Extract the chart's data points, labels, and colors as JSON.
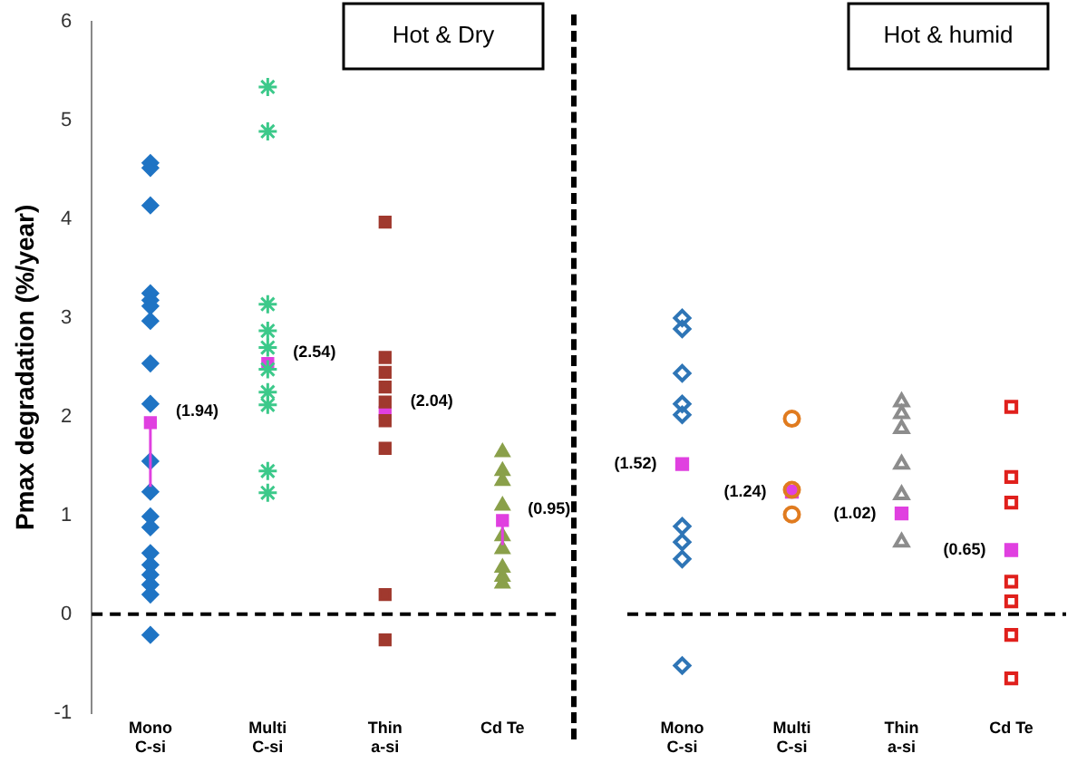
{
  "chart_data": [
    {
      "type": "scatter",
      "title": "Hot & Dry",
      "ylabel": "Pmax degradation (%/year)",
      "categories": [
        "Mono C-si",
        "Multi C-si",
        "Thin a-si",
        "Cd Te"
      ],
      "ylim": [
        -1,
        6
      ],
      "yticks": [
        -1,
        0,
        1,
        2,
        3,
        4,
        5,
        6
      ],
      "grid": false,
      "legend": false,
      "ref_lines": [
        {
          "axis": "y",
          "value": 0,
          "line_style": "dashed",
          "color": "#000000"
        }
      ],
      "series": [
        {
          "color": "#1f74c4",
          "marker": "diamond",
          "x": [
            "Mono C-si",
            "Mono C-si",
            "Mono C-si",
            "Mono C-si",
            "Mono C-si",
            "Mono C-si",
            "Mono C-si",
            "Mono C-si",
            "Mono C-si",
            "Mono C-si",
            "Mono C-si",
            "Mono C-si",
            "Mono C-si",
            "Mono C-si",
            "Mono C-si",
            "Mono C-si",
            "Mono C-si",
            "Mono C-si",
            "Mono C-si"
          ],
          "values": [
            4.57,
            4.52,
            4.14,
            3.25,
            3.18,
            3.12,
            2.97,
            2.54,
            2.13,
            1.55,
            1.24,
            0.99,
            0.88,
            0.62,
            0.5,
            0.4,
            0.3,
            0.2,
            -0.21
          ]
        },
        {
          "color": "#3cc98a",
          "marker": "cross",
          "x": [
            "Multi C-si",
            "Multi C-si",
            "Multi C-si",
            "Multi C-si",
            "Multi C-si",
            "Multi C-si",
            "Multi C-si",
            "Multi C-si",
            "Multi C-si",
            "Multi C-si"
          ],
          "values": [
            5.34,
            4.89,
            3.14,
            2.87,
            2.7,
            2.48,
            2.25,
            2.12,
            1.45,
            1.23
          ]
        },
        {
          "color": "#a0392e",
          "marker": "square",
          "x": [
            "Thin a-si",
            "Thin a-si",
            "Thin a-si",
            "Thin a-si",
            "Thin a-si",
            "Thin a-si",
            "Thin a-si",
            "Thin a-si",
            "Thin a-si"
          ],
          "values": [
            3.97,
            2.6,
            2.45,
            2.3,
            2.15,
            1.96,
            1.68,
            0.2,
            -0.26
          ]
        },
        {
          "color": "#8aa04a",
          "marker": "triangle",
          "x": [
            "Cd Te",
            "Cd Te",
            "Cd Te",
            "Cd Te",
            "Cd Te",
            "Cd Te",
            "Cd Te",
            "Cd Te",
            "Cd Te"
          ],
          "values": [
            1.64,
            1.45,
            1.35,
            1.1,
            0.79,
            0.66,
            0.47,
            0.38,
            0.31
          ]
        },
        {
          "color": "#e040e0",
          "marker": "square",
          "x": [
            "Mono C-si",
            "Multi C-si",
            "Thin a-si",
            "Cd Te"
          ],
          "values": [
            1.94,
            2.54,
            2.04,
            0.95
          ],
          "value_labels": [
            "(1.94)",
            "(2.54)",
            "(2.04)",
            "(0.95)"
          ],
          "errors": [
            [
              1.29,
              1.94
            ],
            null,
            null,
            [
              0.7,
              0.95
            ]
          ]
        }
      ]
    },
    {
      "type": "scatter",
      "title": "Hot & humid",
      "categories": [
        "Mono C-si",
        "Multi C-si",
        "Thin a-si",
        "Cd Te"
      ],
      "ylim": [
        -1,
        6
      ],
      "yticks": [
        -1,
        0,
        1,
        2,
        3,
        4,
        5,
        6
      ],
      "tick_labels": "x",
      "grid": false,
      "legend": false,
      "ref_lines": [
        {
          "axis": "y",
          "value": 0,
          "line_style": "dashed",
          "color": "#000000"
        }
      ],
      "series": [
        {
          "color": "#2e75b6",
          "marker": "diamond",
          "x": [
            "Mono C-si",
            "Mono C-si",
            "Mono C-si",
            "Mono C-si",
            "Mono C-si",
            "Mono C-si",
            "Mono C-si",
            "Mono C-si",
            "Mono C-si"
          ],
          "values": [
            3.0,
            2.89,
            2.44,
            2.13,
            2.02,
            0.89,
            0.73,
            0.56,
            -0.52
          ]
        },
        {
          "color": "#e07b1f",
          "marker": "circle",
          "x": [
            "Multi C-si",
            "Multi C-si",
            "Multi C-si"
          ],
          "values": [
            1.98,
            1.26,
            1.01
          ]
        },
        {
          "color": "#8c8c8c",
          "marker": "triangle",
          "x": [
            "Thin a-si",
            "Thin a-si",
            "Thin a-si",
            "Thin a-si",
            "Thin a-si",
            "Thin a-si"
          ],
          "values": [
            2.15,
            2.03,
            1.88,
            1.52,
            1.21,
            0.73
          ]
        },
        {
          "color": "#e0201c",
          "marker": "square",
          "x": [
            "Cd Te",
            "Cd Te",
            "Cd Te",
            "Cd Te",
            "Cd Te",
            "Cd Te",
            "Cd Te"
          ],
          "values": [
            2.1,
            1.39,
            1.13,
            0.33,
            0.13,
            -0.21,
            -0.65
          ]
        },
        {
          "color": "#e040e0",
          "marker": "square",
          "x": [
            "Mono C-si",
            "Multi C-si",
            "Thin a-si",
            "Cd Te"
          ],
          "values": [
            1.52,
            1.24,
            1.02,
            0.65
          ],
          "value_labels": [
            "(1.52)",
            "(1.24)",
            "(1.02)",
            "(0.65)"
          ]
        }
      ]
    }
  ]
}
